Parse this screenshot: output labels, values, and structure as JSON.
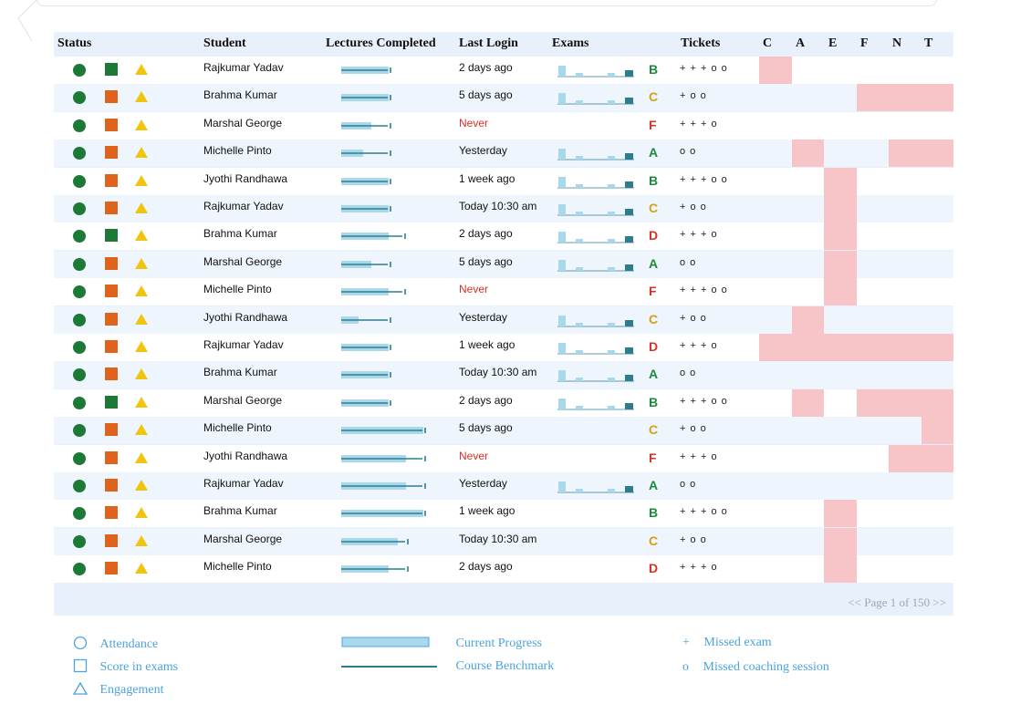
{
  "colors": {
    "header_bg": "#e8f1fb",
    "row_alt": "#eef5fd",
    "attendance": "#1d7a36",
    "score_green": "#1d7a36",
    "score_orange": "#e0631c",
    "engagement": "#f1c40f",
    "heat": "#f7c5c7",
    "progress_fill": "#a9d8ea",
    "benchmark": "#2e7d8f",
    "legend_text": "#4aa3df",
    "never": "#d93025"
  },
  "headers": {
    "status": "Status",
    "student": "Student",
    "lectures": "Lectures Completed",
    "last_login": "Last Login",
    "exams": "Exams",
    "tickets": "Tickets",
    "heat": [
      "C",
      "A",
      "E",
      "F",
      "N",
      "T"
    ]
  },
  "rows": [
    {
      "name": "Rajkumar Yadav",
      "score": "green",
      "progress": 0.55,
      "benchmark": 0.55,
      "login": "2 days ago",
      "exams": true,
      "grade": "B",
      "tickets": "+ + + o o",
      "heat": [
        1,
        0,
        0,
        0,
        0,
        0
      ]
    },
    {
      "name": "Brahma Kumar",
      "score": "orange",
      "progress": 0.55,
      "benchmark": 0.55,
      "login": "5 days ago",
      "exams": true,
      "grade": "C",
      "tickets": "+ o o",
      "heat": [
        0,
        0,
        0,
        1,
        1,
        1
      ]
    },
    {
      "name": "Marshal George",
      "score": "orange",
      "progress": 0.35,
      "benchmark": 0.55,
      "login": "Never",
      "exams": false,
      "grade": "F",
      "tickets": "+ + + o",
      "heat": [
        0,
        0,
        0,
        0,
        0,
        0
      ]
    },
    {
      "name": "Michelle Pinto",
      "score": "orange",
      "progress": 0.25,
      "benchmark": 0.55,
      "login": "Yesterday",
      "exams": true,
      "grade": "A",
      "tickets": "o o",
      "heat": [
        0,
        1,
        0,
        0,
        1,
        1
      ]
    },
    {
      "name": "Jyothi Randhawa",
      "score": "orange",
      "progress": 0.55,
      "benchmark": 0.55,
      "login": "1 week ago",
      "exams": true,
      "grade": "B",
      "tickets": "+ + + o o",
      "heat": [
        0,
        0,
        1,
        0,
        0,
        0
      ]
    },
    {
      "name": "Rajkumar Yadav",
      "score": "orange",
      "progress": 0.55,
      "benchmark": 0.55,
      "login": "Today 10:30 am",
      "exams": true,
      "grade": "C",
      "tickets": "+ o o",
      "heat": [
        0,
        0,
        1,
        0,
        0,
        0
      ]
    },
    {
      "name": "Brahma Kumar",
      "score": "green",
      "progress": 0.55,
      "benchmark": 0.72,
      "login": "2 days ago",
      "exams": true,
      "grade": "D",
      "tickets": "+ + + o",
      "heat": [
        0,
        0,
        1,
        0,
        0,
        0
      ]
    },
    {
      "name": "Marshal George",
      "score": "orange",
      "progress": 0.35,
      "benchmark": 0.55,
      "login": "5 days ago",
      "exams": true,
      "grade": "A",
      "tickets": "o o",
      "heat": [
        0,
        0,
        1,
        0,
        0,
        0
      ]
    },
    {
      "name": "Michelle Pinto",
      "score": "orange",
      "progress": 0.55,
      "benchmark": 0.72,
      "login": "Never",
      "exams": false,
      "grade": "F",
      "tickets": "+ + + o o",
      "heat": [
        0,
        0,
        1,
        0,
        0,
        0
      ]
    },
    {
      "name": "Jyothi Randhawa",
      "score": "orange",
      "progress": 0.2,
      "benchmark": 0.55,
      "login": "Yesterday",
      "exams": true,
      "grade": "C",
      "tickets": "+ o o",
      "heat": [
        0,
        1,
        0,
        0,
        0,
        0
      ]
    },
    {
      "name": "Rajkumar Yadav",
      "score": "orange",
      "progress": 0.55,
      "benchmark": 0.55,
      "login": "1 week ago",
      "exams": true,
      "grade": "D",
      "tickets": "+ + + o",
      "heat": [
        1,
        1,
        1,
        1,
        1,
        1
      ]
    },
    {
      "name": "Brahma Kumar",
      "score": "orange",
      "progress": 0.55,
      "benchmark": 0.55,
      "login": "Today 10:30 am",
      "exams": true,
      "grade": "A",
      "tickets": "o o",
      "heat": [
        0,
        0,
        0,
        0,
        0,
        0
      ]
    },
    {
      "name": "Marshal George",
      "score": "green",
      "progress": 0.55,
      "benchmark": 0.55,
      "login": "2 days ago",
      "exams": true,
      "grade": "B",
      "tickets": "+ + + o o",
      "heat": [
        0,
        1,
        0,
        1,
        1,
        1
      ]
    },
    {
      "name": "Michelle Pinto",
      "score": "orange",
      "progress": 0.95,
      "benchmark": 0.95,
      "login": "5 days ago",
      "exams": false,
      "grade": "C",
      "tickets": "+ o o",
      "heat": [
        0,
        0,
        0,
        0,
        0,
        1
      ]
    },
    {
      "name": "Jyothi Randhawa",
      "score": "orange",
      "progress": 0.75,
      "benchmark": 0.95,
      "login": "Never",
      "exams": false,
      "grade": "F",
      "tickets": "+ + + o",
      "heat": [
        0,
        0,
        0,
        0,
        1,
        1
      ]
    },
    {
      "name": "Rajkumar Yadav",
      "score": "orange",
      "progress": 0.75,
      "benchmark": 0.95,
      "login": "Yesterday",
      "exams": true,
      "grade": "A",
      "tickets": "o o",
      "heat": [
        0,
        0,
        0,
        0,
        0,
        0
      ]
    },
    {
      "name": "Brahma Kumar",
      "score": "orange",
      "progress": 0.95,
      "benchmark": 0.95,
      "login": "1 week ago",
      "exams": false,
      "grade": "B",
      "tickets": "+ + + o o",
      "heat": [
        0,
        0,
        1,
        0,
        0,
        0
      ]
    },
    {
      "name": "Marshal George",
      "score": "orange",
      "progress": 0.65,
      "benchmark": 0.75,
      "login": "Today 10:30 am",
      "exams": false,
      "grade": "C",
      "tickets": "+ o o",
      "heat": [
        0,
        0,
        1,
        0,
        0,
        0
      ]
    },
    {
      "name": "Michelle Pinto",
      "score": "orange",
      "progress": 0.55,
      "benchmark": 0.75,
      "login": "2 days ago",
      "exams": false,
      "grade": "D",
      "tickets": "+ + + o",
      "heat": [
        0,
        0,
        1,
        0,
        0,
        0
      ]
    }
  ],
  "grade_colors": {
    "A": "#1d8a3a",
    "B": "#1d8a3a",
    "C": "#d4a017",
    "D": "#d93025",
    "F": "#d93025"
  },
  "pager": "<< Page 1 of 150 >>",
  "legend": {
    "attendance": "Attendance",
    "score": "Score in exams",
    "engagement": "Engagement",
    "current_progress": "Current Progress",
    "benchmark": "Course Benchmark",
    "missed_exam_symbol": "+",
    "missed_exam": "Missed exam",
    "missed_session_symbol": "o",
    "missed_session": "Missed coaching session"
  }
}
